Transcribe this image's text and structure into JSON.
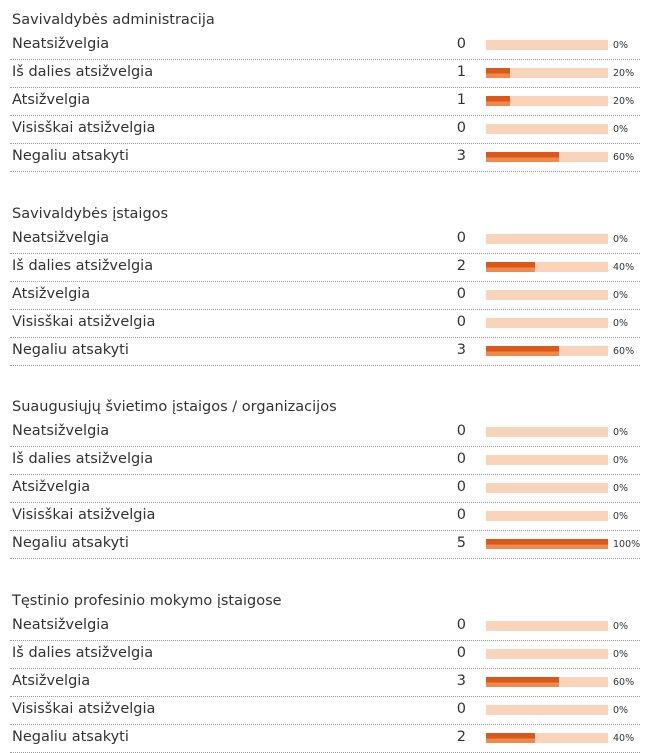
{
  "groups": [
    {
      "title": "Savivaldybės administracija",
      "rows": [
        {
          "label": "Neatsižvelgia",
          "count": "0",
          "percent": 0,
          "percent_label": "0%"
        },
        {
          "label": "Iš dalies atsižvelgia",
          "count": "1",
          "percent": 20,
          "percent_label": "20%"
        },
        {
          "label": "Atsižvelgia",
          "count": "1",
          "percent": 20,
          "percent_label": "20%"
        },
        {
          "label": "Visisškai atsižvelgia",
          "count": "0",
          "percent": 0,
          "percent_label": "0%"
        },
        {
          "label": "Negaliu atsakyti",
          "count": "3",
          "percent": 60,
          "percent_label": "60%"
        }
      ]
    },
    {
      "title": "Savivaldybės įstaigos",
      "rows": [
        {
          "label": "Neatsižvelgia",
          "count": "0",
          "percent": 0,
          "percent_label": "0%"
        },
        {
          "label": "Iš dalies atsižvelgia",
          "count": "2",
          "percent": 40,
          "percent_label": "40%"
        },
        {
          "label": "Atsižvelgia",
          "count": "0",
          "percent": 0,
          "percent_label": "0%"
        },
        {
          "label": "Visisškai atsižvelgia",
          "count": "0",
          "percent": 0,
          "percent_label": "0%"
        },
        {
          "label": "Negaliu atsakyti",
          "count": "3",
          "percent": 60,
          "percent_label": "60%"
        }
      ]
    },
    {
      "title": "Suaugusiųjų švietimo įstaigos / organizacijos",
      "rows": [
        {
          "label": "Neatsižvelgia",
          "count": "0",
          "percent": 0,
          "percent_label": "0%"
        },
        {
          "label": "Iš dalies atsižvelgia",
          "count": "0",
          "percent": 0,
          "percent_label": "0%"
        },
        {
          "label": "Atsižvelgia",
          "count": "0",
          "percent": 0,
          "percent_label": "0%"
        },
        {
          "label": "Visisškai atsižvelgia",
          "count": "0",
          "percent": 0,
          "percent_label": "0%"
        },
        {
          "label": "Negaliu atsakyti",
          "count": "5",
          "percent": 100,
          "percent_label": "100%"
        }
      ]
    },
    {
      "title": "Tęstinio profesinio mokymo įstaigose",
      "rows": [
        {
          "label": "Neatsižvelgia",
          "count": "0",
          "percent": 0,
          "percent_label": "0%"
        },
        {
          "label": "Iš dalies atsižvelgia",
          "count": "0",
          "percent": 0,
          "percent_label": "0%"
        },
        {
          "label": "Atsižvelgia",
          "count": "3",
          "percent": 60,
          "percent_label": "60%"
        },
        {
          "label": "Visisškai atsižvelgia",
          "count": "0",
          "percent": 0,
          "percent_label": "0%"
        },
        {
          "label": "Negaliu atsakyti",
          "count": "2",
          "percent": 40,
          "percent_label": "40%"
        }
      ]
    }
  ]
}
